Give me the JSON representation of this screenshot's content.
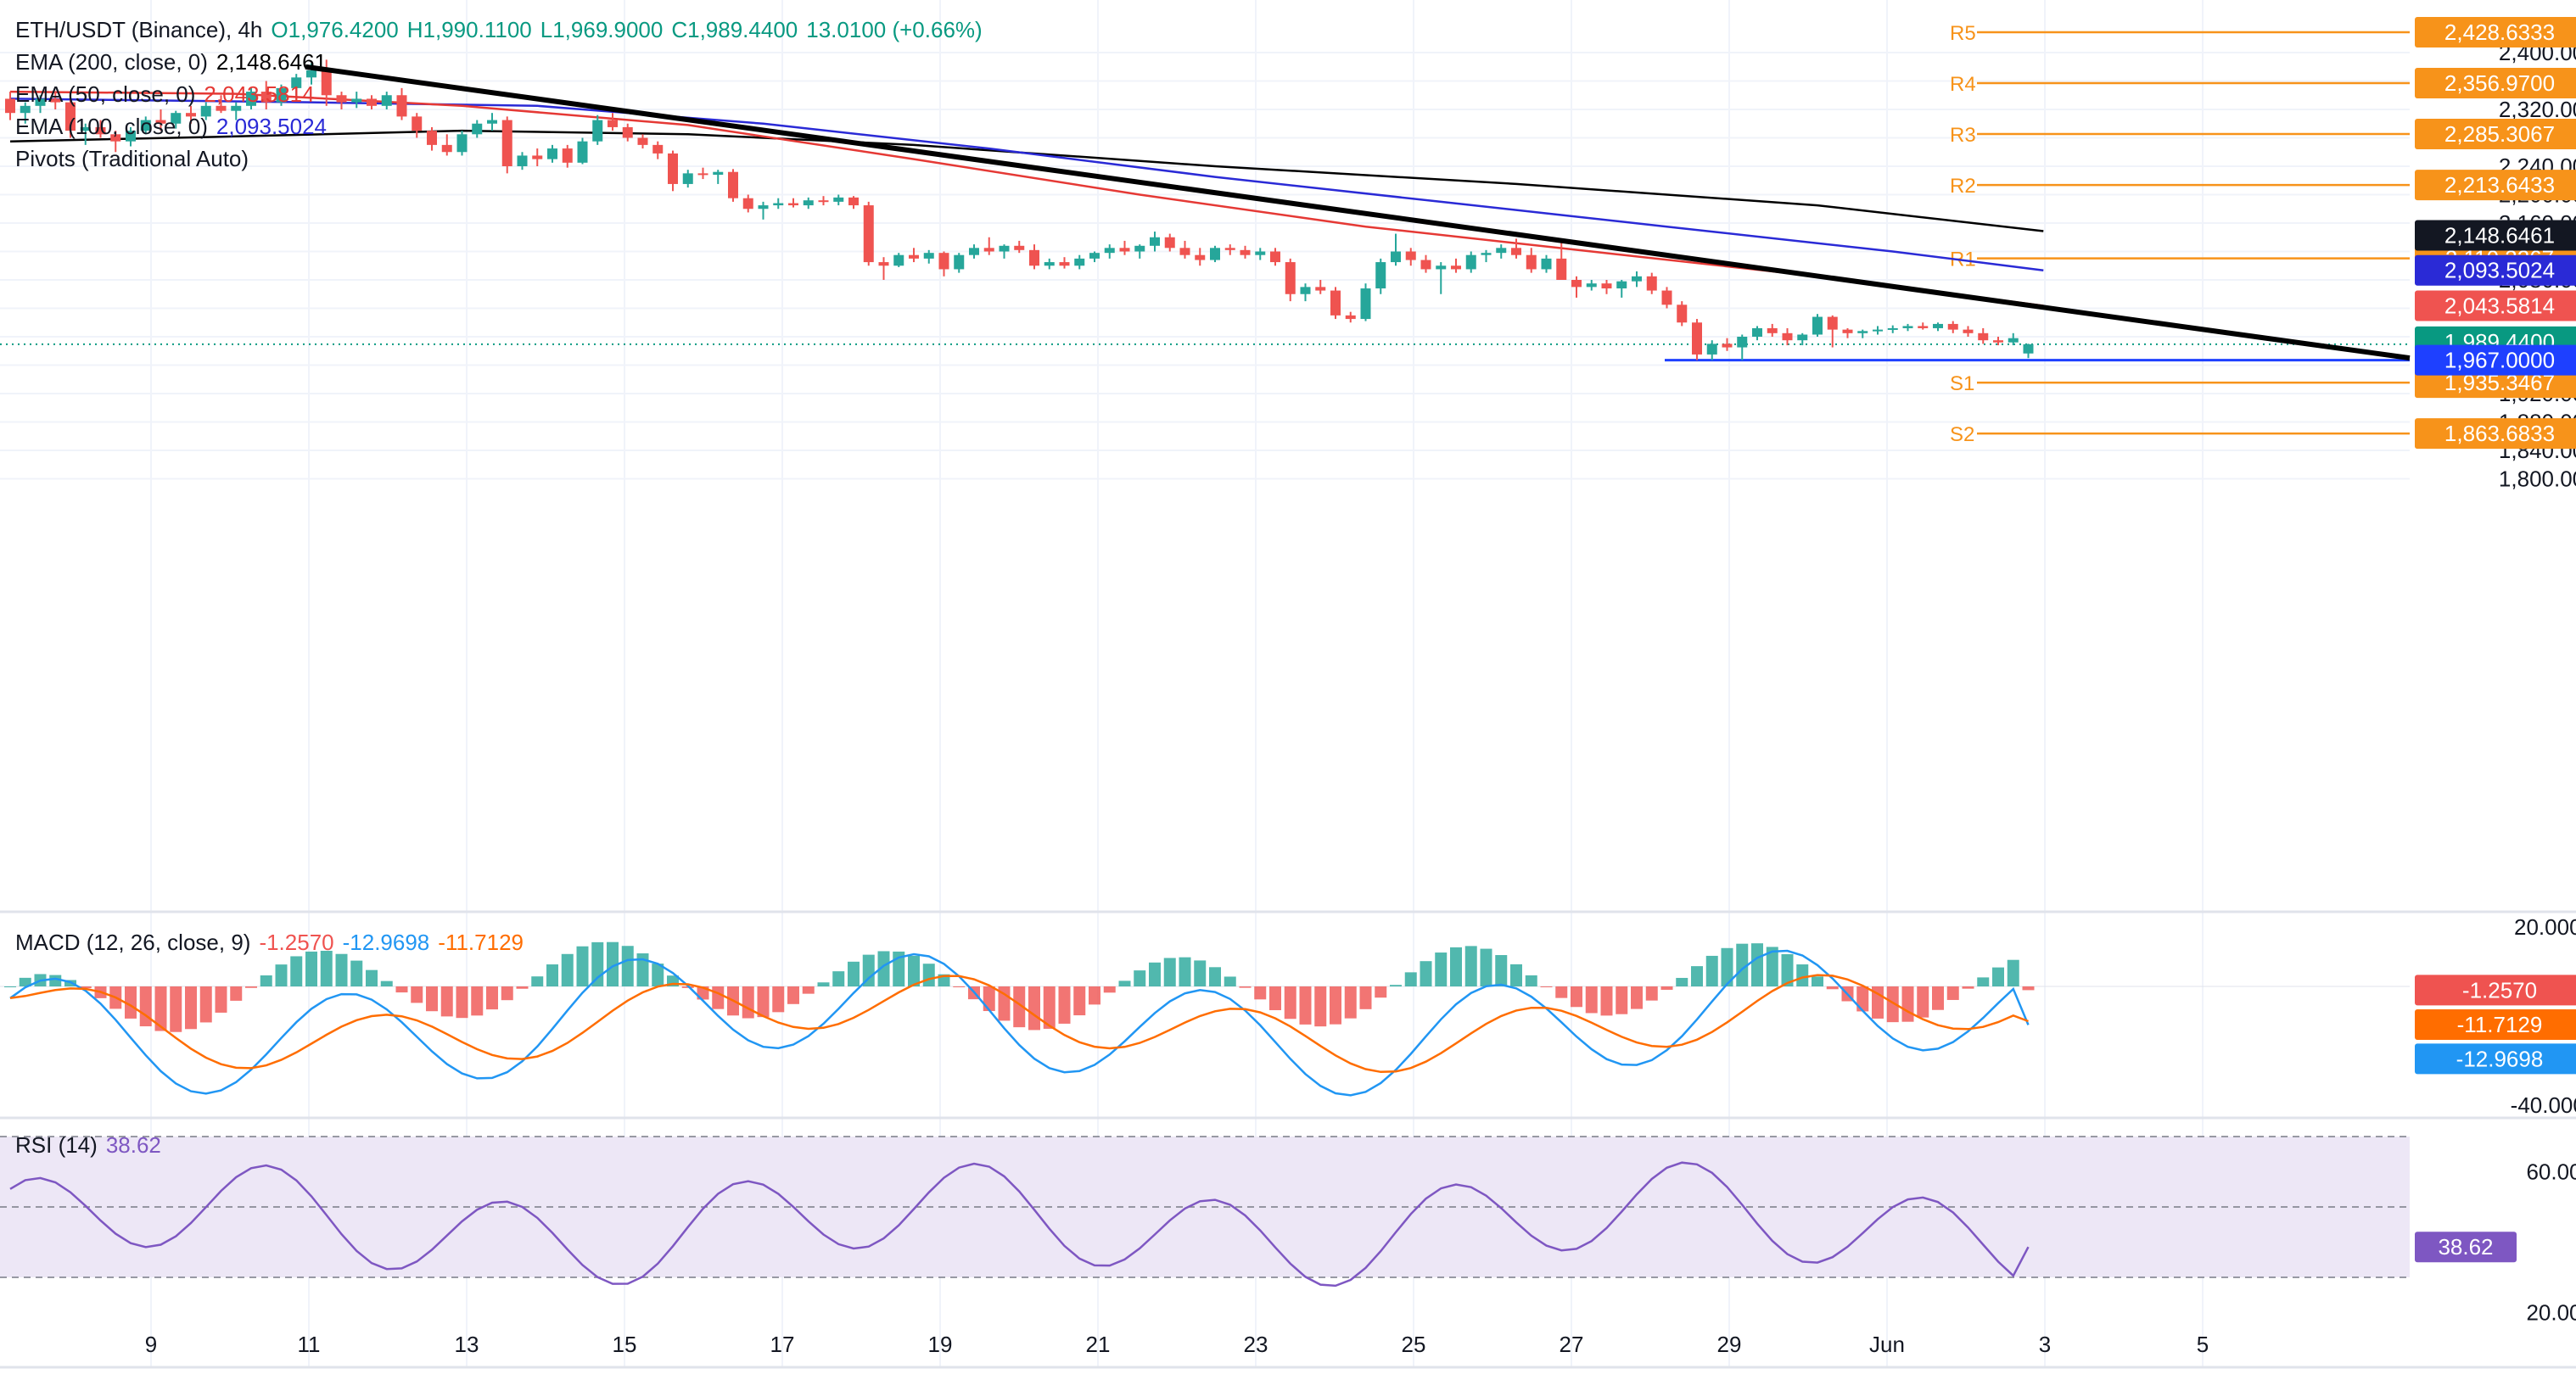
{
  "header": {
    "symbol": "ETH/USDT (Binance), 4h",
    "open": "O1,976.4200",
    "high": "H1,990.1100",
    "low": "L1,969.9000",
    "close": "C1,989.4400",
    "change": "13.0100 (+0.66%)"
  },
  "indicators": {
    "ema200": {
      "label": "EMA (200, close, 0)",
      "value": "2,148.6461",
      "color": "#000000"
    },
    "ema50": {
      "label": "EMA (50, close, 0)",
      "value": "2,043.5814",
      "color": "#e53935"
    },
    "ema100": {
      "label": "EMA (100, close, 0)",
      "value": "2,093.5024",
      "color": "#2a2ad6"
    },
    "pivots": {
      "label": "Pivots (Traditional Auto)"
    }
  },
  "pivots": [
    {
      "name": "R5",
      "value": 2428.6333,
      "tag": "2,428.6333"
    },
    {
      "name": "R4",
      "value": 2356.97,
      "tag": "2,356.9700"
    },
    {
      "name": "R3",
      "value": 2285.3067,
      "tag": "2,285.3067"
    },
    {
      "name": "R2",
      "value": 2213.6433,
      "tag": "2,213.6433"
    },
    {
      "name": "R1",
      "value": 2110.3267,
      "tag": "2,110.3267"
    },
    {
      "name": "S1",
      "value": 1935.3467,
      "tag": "1,935.3467"
    },
    {
      "name": "S2",
      "value": 1863.6833,
      "tag": "1,863.6833"
    }
  ],
  "price_tags": {
    "ema200": "2,148.6461",
    "ema100": "2,093.5024",
    "ema50": "2,043.5814",
    "last": "1,989.4400",
    "support": "1,967.0000"
  },
  "price_axis": [
    "2,400.0000",
    "2,360.0000",
    "2,320.0000",
    "2,280.0000",
    "2,240.0000",
    "2,200.0000",
    "2,160.0000",
    "2,120.0000",
    "2,080.0000",
    "2,040.0000",
    "2,000.0000",
    "1,960.0000",
    "1,920.0000",
    "1,880.0000",
    "1,840.0000",
    "1,800.0000"
  ],
  "x_axis": [
    "9",
    "11",
    "13",
    "15",
    "17",
    "19",
    "21",
    "23",
    "25",
    "27",
    "29",
    "Jun",
    "3",
    "5"
  ],
  "macd": {
    "label": "MACD (12, 26, close, 9)",
    "hist": "-1.2570",
    "macd": "-12.9698",
    "signal": "-11.7129",
    "axis": [
      "20.0000",
      "-40.0000"
    ],
    "tags": {
      "hist": "-1.2570",
      "signal": "-11.7129",
      "macd": "-12.9698"
    }
  },
  "rsi": {
    "label": "RSI (14)",
    "value": "38.62",
    "axis": [
      "60.00",
      "20.00"
    ],
    "tag": "38.62"
  },
  "colors": {
    "up": "#26a69a",
    "down": "#ef5350",
    "pivot": "#f7931a",
    "support": "#1e40ff",
    "macd_line": "#2196f3",
    "signal_line": "#ff6d00",
    "rsi_line": "#7e57c2",
    "rsi_band": "#ede7f6",
    "trendline": "#000000"
  },
  "chart_data": {
    "type": "candlestick",
    "timeframe": "4h",
    "y_range": [
      1795,
      2435
    ],
    "x_ticks": [
      "9",
      "11",
      "13",
      "15",
      "17",
      "19",
      "21",
      "23",
      "25",
      "27",
      "29",
      "Jun",
      "3",
      "5"
    ],
    "candles": [
      [
        2335,
        2345,
        2305,
        2315
      ],
      [
        2315,
        2330,
        2300,
        2325
      ],
      [
        2325,
        2340,
        2315,
        2335
      ],
      [
        2335,
        2345,
        2320,
        2330
      ],
      [
        2330,
        2335,
        2280,
        2290
      ],
      [
        2290,
        2300,
        2270,
        2295
      ],
      [
        2295,
        2305,
        2280,
        2285
      ],
      [
        2285,
        2290,
        2260,
        2275
      ],
      [
        2275,
        2295,
        2268,
        2290
      ],
      [
        2290,
        2310,
        2285,
        2305
      ],
      [
        2305,
        2320,
        2290,
        2300
      ],
      [
        2300,
        2318,
        2293,
        2315
      ],
      [
        2315,
        2325,
        2300,
        2310
      ],
      [
        2310,
        2330,
        2305,
        2325
      ],
      [
        2325,
        2340,
        2315,
        2318
      ],
      [
        2318,
        2330,
        2305,
        2325
      ],
      [
        2325,
        2350,
        2320,
        2345
      ],
      [
        2345,
        2360,
        2320,
        2330
      ],
      [
        2330,
        2355,
        2325,
        2350
      ],
      [
        2350,
        2370,
        2340,
        2365
      ],
      [
        2365,
        2385,
        2355,
        2375
      ],
      [
        2375,
        2390,
        2325,
        2340
      ],
      [
        2340,
        2345,
        2320,
        2330
      ],
      [
        2330,
        2345,
        2322,
        2335
      ],
      [
        2335,
        2340,
        2320,
        2325
      ],
      [
        2325,
        2345,
        2320,
        2340
      ],
      [
        2340,
        2350,
        2305,
        2310
      ],
      [
        2310,
        2315,
        2280,
        2290
      ],
      [
        2290,
        2295,
        2262,
        2270
      ],
      [
        2270,
        2285,
        2255,
        2260
      ],
      [
        2260,
        2290,
        2255,
        2285
      ],
      [
        2285,
        2305,
        2280,
        2300
      ],
      [
        2300,
        2315,
        2290,
        2305
      ],
      [
        2305,
        2310,
        2230,
        2240
      ],
      [
        2240,
        2260,
        2235,
        2255
      ],
      [
        2255,
        2265,
        2240,
        2250
      ],
      [
        2250,
        2270,
        2245,
        2265
      ],
      [
        2265,
        2270,
        2238,
        2245
      ],
      [
        2245,
        2280,
        2243,
        2275
      ],
      [
        2275,
        2312,
        2270,
        2305
      ],
      [
        2305,
        2315,
        2290,
        2295
      ],
      [
        2295,
        2300,
        2275,
        2280
      ],
      [
        2280,
        2285,
        2265,
        2270
      ],
      [
        2270,
        2275,
        2250,
        2258
      ],
      [
        2258,
        2262,
        2205,
        2215
      ],
      [
        2215,
        2235,
        2210,
        2230
      ],
      [
        2230,
        2238,
        2222,
        2228
      ],
      [
        2228,
        2235,
        2215,
        2232
      ],
      [
        2232,
        2236,
        2190,
        2195
      ],
      [
        2195,
        2200,
        2175,
        2180
      ],
      [
        2180,
        2190,
        2165,
        2185
      ],
      [
        2185,
        2195,
        2180,
        2188
      ],
      [
        2188,
        2195,
        2182,
        2185
      ],
      [
        2185,
        2196,
        2180,
        2192
      ],
      [
        2192,
        2198,
        2185,
        2190
      ],
      [
        2190,
        2200,
        2185,
        2196
      ],
      [
        2196,
        2198,
        2180,
        2185
      ],
      [
        2185,
        2190,
        2100,
        2105
      ],
      [
        2105,
        2112,
        2080,
        2100
      ],
      [
        2100,
        2118,
        2098,
        2115
      ],
      [
        2115,
        2125,
        2105,
        2110
      ],
      [
        2110,
        2122,
        2103,
        2118
      ],
      [
        2118,
        2120,
        2085,
        2095
      ],
      [
        2095,
        2118,
        2090,
        2115
      ],
      [
        2115,
        2130,
        2110,
        2125
      ],
      [
        2125,
        2140,
        2115,
        2120
      ],
      [
        2120,
        2130,
        2110,
        2128
      ],
      [
        2128,
        2135,
        2118,
        2122
      ],
      [
        2122,
        2130,
        2095,
        2100
      ],
      [
        2100,
        2110,
        2095,
        2105
      ],
      [
        2105,
        2112,
        2096,
        2100
      ],
      [
        2100,
        2115,
        2095,
        2110
      ],
      [
        2110,
        2120,
        2105,
        2118
      ],
      [
        2118,
        2130,
        2110,
        2125
      ],
      [
        2125,
        2135,
        2115,
        2120
      ],
      [
        2120,
        2130,
        2110,
        2128
      ],
      [
        2128,
        2148,
        2120,
        2140
      ],
      [
        2140,
        2145,
        2120,
        2125
      ],
      [
        2125,
        2135,
        2110,
        2115
      ],
      [
        2115,
        2125,
        2100,
        2108
      ],
      [
        2108,
        2128,
        2105,
        2125
      ],
      [
        2125,
        2130,
        2115,
        2122
      ],
      [
        2122,
        2128,
        2110,
        2115
      ],
      [
        2115,
        2125,
        2108,
        2120
      ],
      [
        2120,
        2125,
        2100,
        2105
      ],
      [
        2105,
        2110,
        2050,
        2060
      ],
      [
        2060,
        2075,
        2050,
        2070
      ],
      [
        2070,
        2080,
        2060,
        2065
      ],
      [
        2065,
        2070,
        2025,
        2030
      ],
      [
        2030,
        2035,
        2020,
        2025
      ],
      [
        2025,
        2075,
        2022,
        2068
      ],
      [
        2068,
        2110,
        2060,
        2105
      ],
      [
        2105,
        2145,
        2100,
        2120
      ],
      [
        2120,
        2125,
        2100,
        2108
      ],
      [
        2108,
        2115,
        2090,
        2095
      ],
      [
        2095,
        2105,
        2060,
        2100
      ],
      [
        2100,
        2110,
        2090,
        2095
      ],
      [
        2095,
        2120,
        2090,
        2115
      ],
      [
        2115,
        2122,
        2105,
        2118
      ],
      [
        2118,
        2130,
        2110,
        2125
      ],
      [
        2125,
        2138,
        2110,
        2115
      ],
      [
        2115,
        2125,
        2090,
        2095
      ],
      [
        2095,
        2115,
        2090,
        2110
      ],
      [
        2110,
        2135,
        2080,
        2080
      ],
      [
        2080,
        2085,
        2055,
        2070
      ],
      [
        2070,
        2080,
        2065,
        2075
      ],
      [
        2075,
        2080,
        2060,
        2068
      ],
      [
        2068,
        2080,
        2055,
        2078
      ],
      [
        2078,
        2092,
        2070,
        2085
      ],
      [
        2085,
        2090,
        2060,
        2065
      ],
      [
        2065,
        2070,
        2040,
        2045
      ],
      [
        2045,
        2050,
        2015,
        2020
      ],
      [
        2020,
        2025,
        1967,
        1975
      ],
      [
        1975,
        1995,
        1967,
        1990
      ],
      [
        1990,
        1998,
        1980,
        1985
      ],
      [
        1985,
        2003,
        1967,
        2000
      ],
      [
        2000,
        2015,
        1995,
        2012
      ],
      [
        2012,
        2018,
        2000,
        2005
      ],
      [
        2005,
        2012,
        1988,
        1995
      ],
      [
        1995,
        2005,
        1988,
        2003
      ],
      [
        2003,
        2032,
        2000,
        2028
      ],
      [
        2028,
        2030,
        1985,
        2010
      ],
      [
        2010,
        2012,
        1998,
        2005
      ],
      [
        2005,
        2010,
        1998,
        2008
      ],
      [
        2008,
        2015,
        2003,
        2010
      ],
      [
        2010,
        2016,
        2005,
        2012
      ],
      [
        2012,
        2018,
        2008,
        2015
      ],
      [
        2015,
        2020,
        2010,
        2012
      ],
      [
        2012,
        2020,
        2008,
        2018
      ],
      [
        2018,
        2022,
        2005,
        2010
      ],
      [
        2010,
        2015,
        2000,
        2005
      ],
      [
        2005,
        2012,
        1990,
        1995
      ],
      [
        1995,
        2000,
        1988,
        1992
      ],
      [
        1992,
        2005,
        1988,
        1998
      ],
      [
        1976.42,
        1990.11,
        1969.9,
        1989.44
      ]
    ],
    "ema50": {
      "points": [
        [
          0,
          2345
        ],
        [
          15,
          2342
        ],
        [
          30,
          2325
        ],
        [
          45,
          2298
        ],
        [
          60,
          2250
        ],
        [
          75,
          2200
        ],
        [
          90,
          2155
        ],
        [
          105,
          2120
        ],
        [
          120,
          2085
        ],
        [
          135,
          2043.58
        ]
      ]
    },
    "ema100": {
      "points": [
        [
          0,
          2335
        ],
        [
          20,
          2330
        ],
        [
          35,
          2325
        ],
        [
          50,
          2300
        ],
        [
          65,
          2265
        ],
        [
          80,
          2225
        ],
        [
          95,
          2190
        ],
        [
          110,
          2155
        ],
        [
          125,
          2120
        ],
        [
          135,
          2093.5
        ]
      ]
    },
    "ema200": {
      "points": [
        [
          0,
          2275
        ],
        [
          15,
          2282
        ],
        [
          30,
          2290
        ],
        [
          45,
          2285
        ],
        [
          60,
          2270
        ],
        [
          80,
          2240
        ],
        [
          100,
          2215
        ],
        [
          120,
          2185
        ],
        [
          135,
          2148.65
        ]
      ]
    },
    "trendline": {
      "from": [
        2380,
        19.6
      ],
      "to": [
        1970,
        1470
      ],
      "note": "descending resistance"
    },
    "support_level": 1967.0,
    "macd_panel": {
      "range": [
        -44,
        22
      ],
      "macd_last": -12.9698,
      "signal_last": -11.7129,
      "hist_last": -1.257
    },
    "rsi_panel": {
      "range": [
        15,
        75
      ],
      "bands": [
        30,
        50,
        70
      ],
      "last": 38.62
    }
  }
}
